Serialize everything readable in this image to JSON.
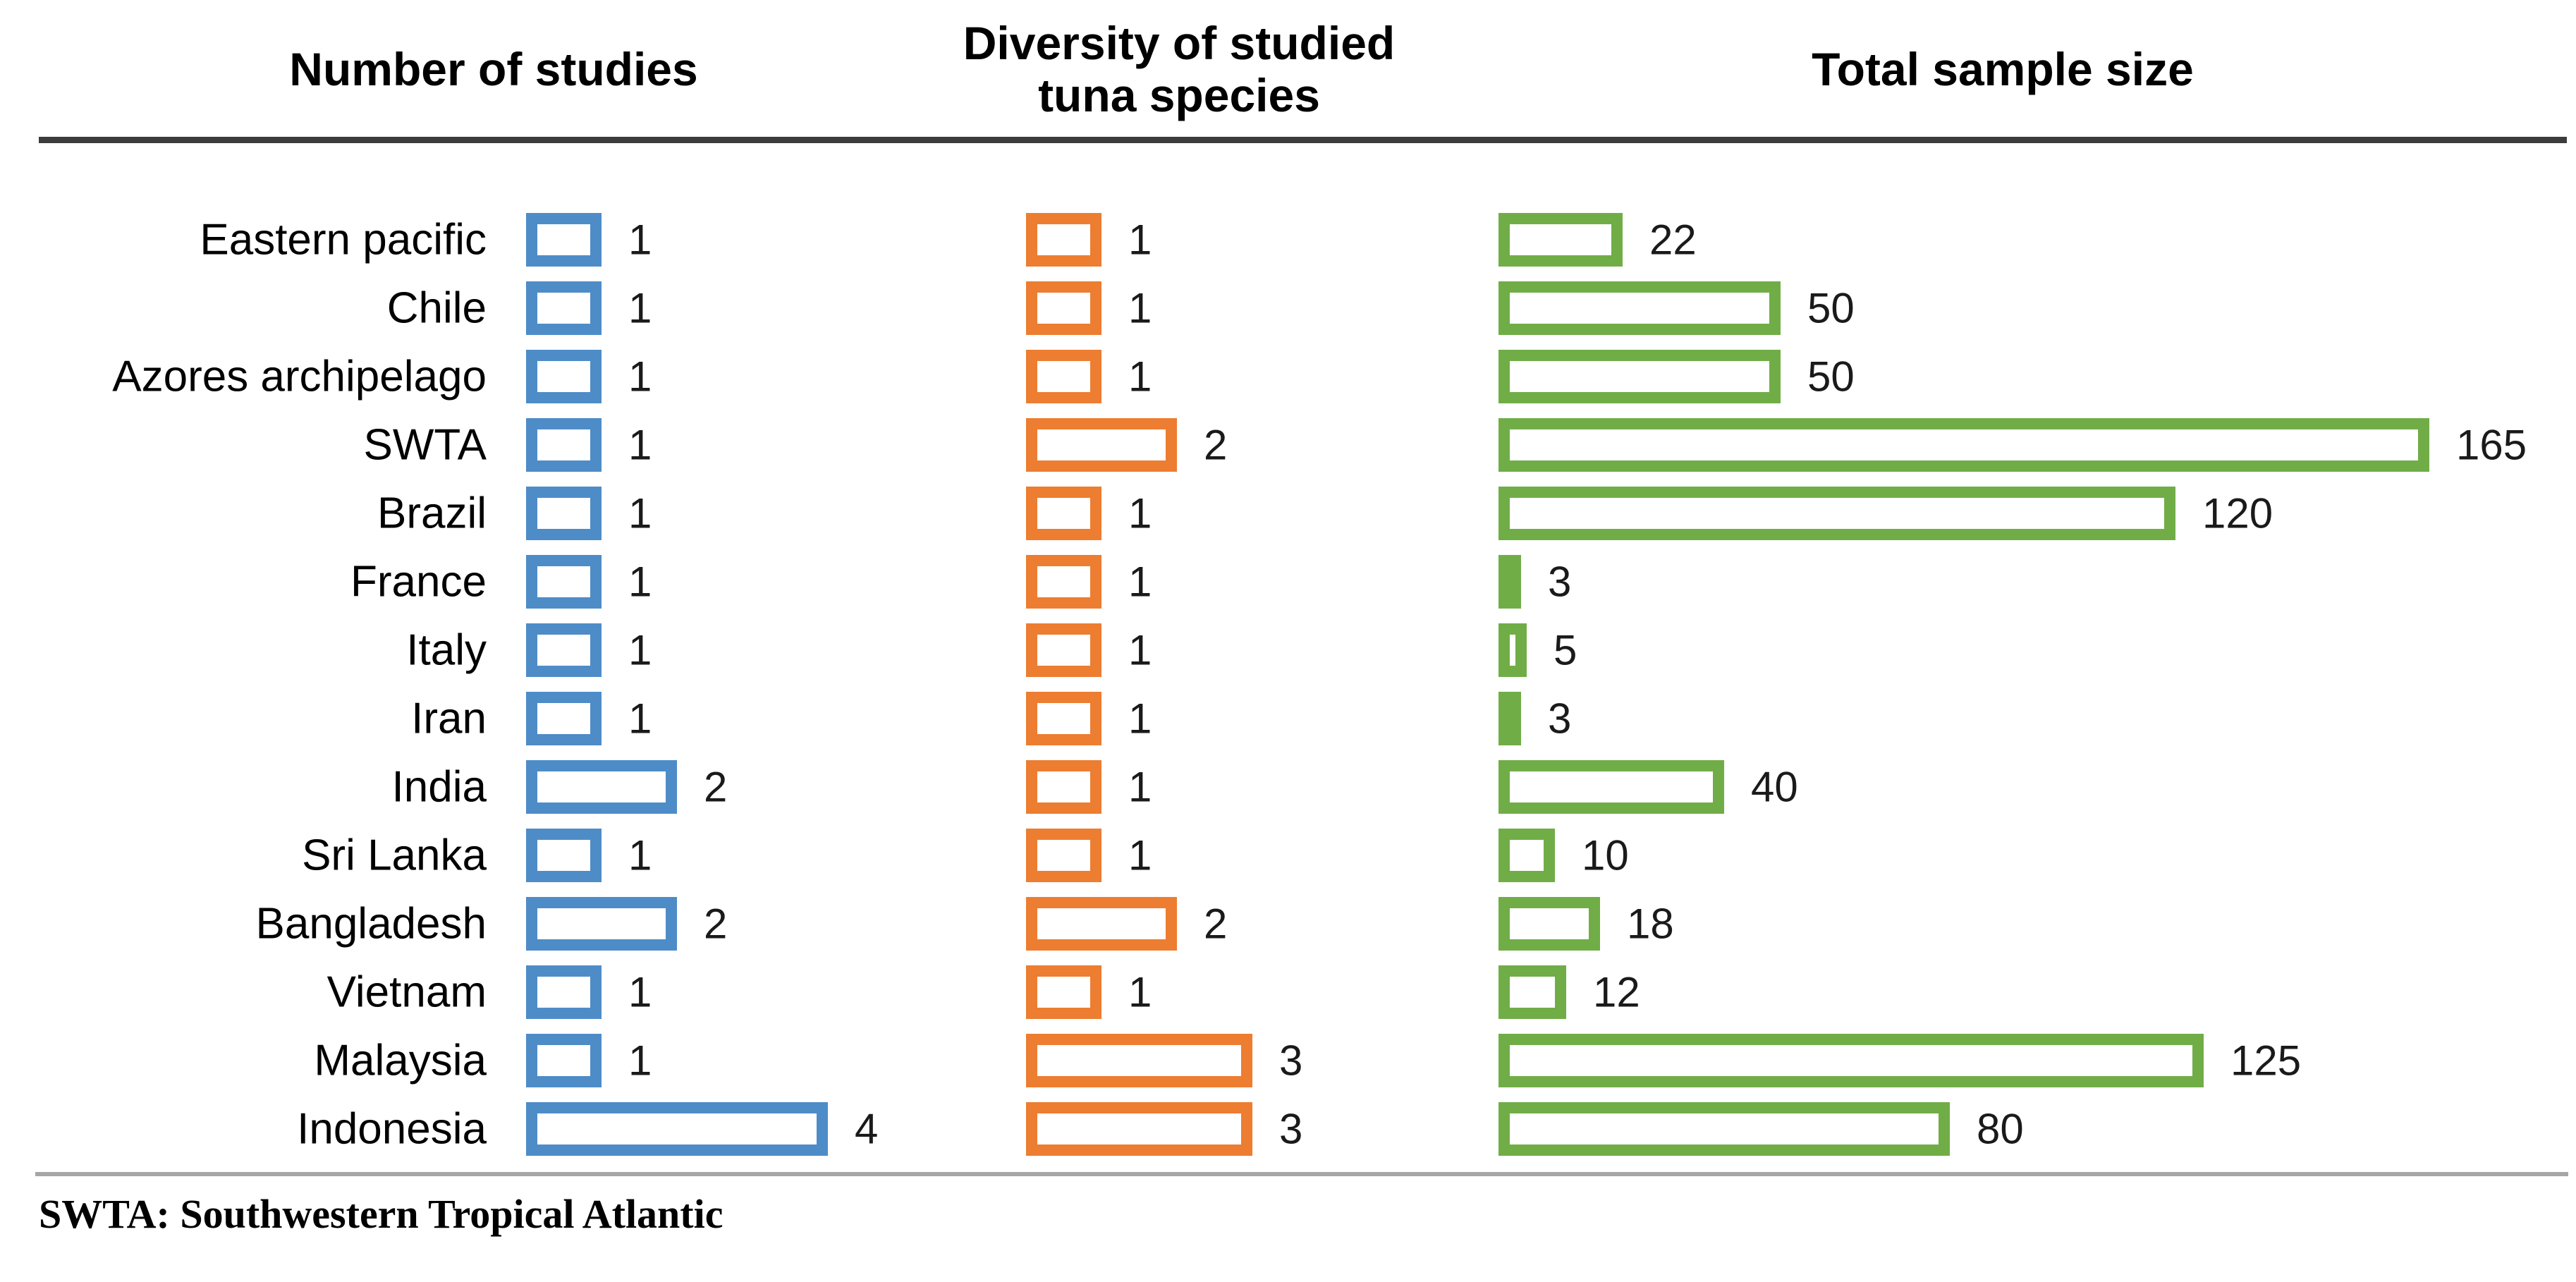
{
  "chart_data": {
    "type": "bar",
    "orientation": "horizontal",
    "categories": [
      "Eastern pacific",
      "Chile",
      "Azores archipelago",
      "SWTA",
      "Brazil",
      "France",
      "Italy",
      "Iran",
      "India",
      "Sri Lanka",
      "Bangladesh",
      "Vietnam",
      "Malaysia",
      "Indonesia"
    ],
    "series": [
      {
        "name": "Number of studies",
        "color": "#4E8CC8",
        "values": [
          1,
          1,
          1,
          1,
          1,
          1,
          1,
          1,
          2,
          1,
          2,
          1,
          1,
          4
        ]
      },
      {
        "name": "Diversity of studied tuna species",
        "color": "#ED7D31",
        "values": [
          1,
          1,
          1,
          2,
          1,
          1,
          1,
          1,
          1,
          1,
          2,
          1,
          3,
          3
        ]
      },
      {
        "name": "Total sample size",
        "color": "#70AD47",
        "values": [
          22,
          50,
          50,
          165,
          120,
          3,
          5,
          3,
          40,
          10,
          18,
          12,
          125,
          80
        ]
      }
    ],
    "value_labels": "right of each bar",
    "bar_style": "outlined, white fill",
    "legend": "none",
    "axes": "none",
    "footnote": "SWTA: Southwestern Tropical Atlantic"
  },
  "headers": {
    "studies": "Number of studies",
    "diversity_line1": "Diversity of studied",
    "diversity_line2": "tuna species",
    "sample": "Total sample size"
  }
}
